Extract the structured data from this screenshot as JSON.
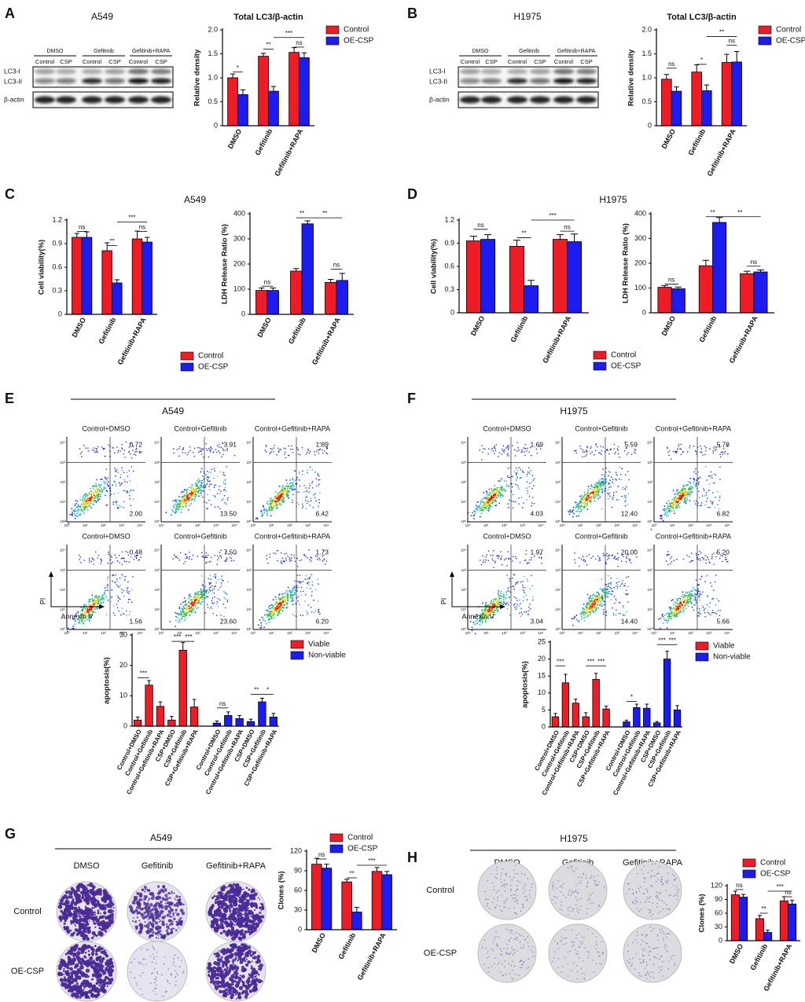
{
  "panel_labels": [
    "A",
    "B",
    "C",
    "D",
    "E",
    "F",
    "G",
    "H"
  ],
  "section_titles": [
    "A549",
    "H1975"
  ],
  "blots": [
    {
      "title": "A549",
      "groups": [
        "DMSO",
        "Gefitinib",
        "Gefitinib+RAPA"
      ],
      "lanes": [
        "Control",
        "CSP",
        "Control",
        "CSP",
        "Control",
        "CSP"
      ],
      "rows": [
        "LC3-I",
        "LC3-II",
        "β-actin"
      ]
    },
    {
      "title": "H1975",
      "groups": [
        "DMSO",
        "Gefitinib",
        "Gefitinib+RAPA"
      ],
      "lanes": [
        "Control",
        "CSP",
        "Control",
        "CSP",
        "Control",
        "CSP"
      ],
      "rows": [
        "LC3-I",
        "LC3-II",
        "β-actin"
      ]
    }
  ],
  "flow_ticks": [
    "10⁰",
    "10¹",
    "10²",
    "10³",
    "10⁴"
  ],
  "flow": [
    {
      "title": "A549",
      "y_axis": "PI",
      "x_axis": "Annexin V",
      "plots": [
        {
          "label": "Control+DMSO",
          "upper": "0.72",
          "lower": "2.00"
        },
        {
          "label": "Control+Gefitinib",
          "upper": "3.91",
          "lower": "13.50"
        },
        {
          "label": "Control+Gefitinib+RAPA",
          "upper": "1.89",
          "lower": "6.42"
        },
        {
          "label": "Control+DMSO",
          "upper": "0.48",
          "lower": "1.56"
        },
        {
          "label": "Control+Gefitinib",
          "upper": "7.50",
          "lower": "23.60"
        },
        {
          "label": "Control+Gefitinib+RAPA",
          "upper": "1.73",
          "lower": "6.20"
        }
      ]
    },
    {
      "title": "H1975",
      "y_axis": "PI",
      "x_axis": "Annexin V",
      "plots": [
        {
          "label": "Control+DMSO",
          "upper": "1.69",
          "lower": "4.03"
        },
        {
          "label": "Control+Gefitinib",
          "upper": "5.59",
          "lower": "12.40"
        },
        {
          "label": "Control+Gefitinib+RAPA",
          "upper": "5.78",
          "lower": "6.82"
        },
        {
          "label": "Control+DMSO",
          "upper": "1.97",
          "lower": "3.04"
        },
        {
          "label": "Control+Gefitinib",
          "upper": "20.00",
          "lower": "14.40"
        },
        {
          "label": "Control+Gefitinib+RAPA",
          "upper": "5.20",
          "lower": "5.66"
        }
      ]
    }
  ],
  "colony": [
    {
      "title": "A549",
      "columns": [
        "DMSO",
        "Gefitinib",
        "Gefitinib+RAPA"
      ],
      "rows": [
        "Control",
        "OE-CSP"
      ]
    },
    {
      "title": "H1975",
      "columns": [
        "DMSO",
        "Gefitinib",
        "Gefitinib+RAPA"
      ],
      "rows": [
        "Control",
        "OE-CSP"
      ]
    }
  ],
  "chart_data": [
    {
      "type": "bar",
      "title": "Total LC3/β-actin",
      "y_label": "Relative density",
      "categories": [
        "DMSO",
        "Gefitinib",
        "Gefitinib+RAPA"
      ],
      "series": [
        {
          "name": "Control",
          "color": "#ee1c24",
          "values": [
            1.0,
            1.45,
            1.53
          ],
          "errors": [
            0.08,
            0.06,
            0.1
          ]
        },
        {
          "name": "OE-CSP",
          "color": "#1c1cf0",
          "values": [
            0.65,
            0.72,
            1.42
          ],
          "errors": [
            0.1,
            0.1,
            0.1
          ]
        }
      ],
      "ylim": [
        0,
        2.0
      ],
      "yticks": [
        0,
        0.5,
        {
          "value": 1.0,
          "label": "1.0"
        },
        1.5,
        {
          "value": 2.0,
          "label": "2.0"
        }
      ],
      "annotations": [
        "*",
        "**",
        "***",
        "ns"
      ]
    },
    {
      "type": "bar",
      "title": "Total LC3/β-actin",
      "y_label": "Relative density",
      "categories": [
        "DMSO",
        "Gefitinib",
        "Gefitinib+RAPA"
      ],
      "series": [
        {
          "name": "Control",
          "color": "#ee1c24",
          "values": [
            0.97,
            1.12,
            1.32
          ],
          "errors": [
            0.1,
            0.15,
            0.17
          ]
        },
        {
          "name": "OE-CSP",
          "color": "#1c1cf0",
          "values": [
            0.72,
            0.73,
            1.33
          ],
          "errors": [
            0.09,
            0.12,
            0.22
          ]
        }
      ],
      "ylim": [
        0,
        2.0
      ],
      "yticks": [
        0,
        0.5,
        {
          "value": 1.0,
          "label": "1.0"
        },
        1.5,
        {
          "value": 2.0,
          "label": "2.0"
        }
      ],
      "annotations": [
        "ns",
        "*",
        "**",
        "ns"
      ]
    },
    {
      "type": "bar",
      "y_label": "Cell viability(%)",
      "categories": [
        "DMSO",
        "Gefitinib",
        "Gefitinib+RAPA"
      ],
      "series": [
        {
          "name": "Control",
          "color": "#ee1c24",
          "values": [
            0.98,
            0.81,
            0.96
          ],
          "errors": [
            0.05,
            0.1,
            0.1
          ]
        },
        {
          "name": "OE-CSP",
          "color": "#1c1cf0",
          "values": [
            0.98,
            0.4,
            0.92
          ],
          "errors": [
            0.07,
            0.04,
            0.06
          ]
        }
      ],
      "ylim": [
        0,
        1.2
      ],
      "yticks": [
        0,
        0.3,
        0.6,
        0.9,
        1.2
      ],
      "annotations": [
        "ns",
        "**",
        "***",
        "ns"
      ]
    },
    {
      "type": "bar",
      "y_label": "LDH Release Ratio (%)",
      "categories": [
        "DMSO",
        "Gefitinib",
        "Gefitinib+RAPA"
      ],
      "series": [
        {
          "color": "#ee1c24",
          "values": [
            95,
            172,
            127
          ],
          "errors": [
            10,
            10,
            12
          ]
        },
        {
          "color": "#1c1cf0",
          "values": [
            95,
            360,
            135
          ],
          "errors": [
            10,
            12,
            28
          ]
        }
      ],
      "ylim": [
        0,
        400
      ],
      "yticks": [
        0,
        100,
        200,
        300,
        400
      ],
      "annotations": [
        "ns",
        "**",
        "**",
        "ns"
      ]
    },
    {
      "type": "bar",
      "y_label": "Cell viability(%)",
      "categories": [
        "DMSO",
        "Gefitinib",
        "Gefitinib+RAPA"
      ],
      "series": [
        {
          "name": "Control",
          "color": "#ee1c24",
          "values": [
            0.93,
            0.86,
            0.95
          ],
          "errors": [
            0.06,
            0.08,
            0.06
          ]
        },
        {
          "name": "OE-CSP",
          "color": "#1c1cf0",
          "values": [
            0.95,
            0.35,
            0.92
          ],
          "errors": [
            0.06,
            0.07,
            0.1
          ]
        }
      ],
      "ylim": [
        0,
        1.2
      ],
      "yticks": [
        0,
        0.3,
        0.6,
        0.9,
        1.2
      ],
      "annotations": [
        "ns",
        "**",
        "***",
        "ns"
      ]
    },
    {
      "type": "bar",
      "y_label": "LDH Release Ratio (%)",
      "categories": [
        "DMSO",
        "Gefitinib",
        "Gefitinib+RAPA"
      ],
      "series": [
        {
          "color": "#ee1c24",
          "values": [
            103,
            190,
            158
          ],
          "errors": [
            7,
            22,
            10
          ]
        },
        {
          "color": "#1c1cf0",
          "values": [
            97,
            365,
            165
          ],
          "errors": [
            7,
            20,
            8
          ]
        }
      ],
      "ylim": [
        0,
        400
      ],
      "yticks": [
        0,
        100,
        200,
        300,
        400
      ],
      "annotations": [
        "ns",
        "**",
        "**",
        "ns"
      ]
    },
    {
      "type": "bar",
      "y_label": "apoptosis(%)",
      "categories": [
        "Control+DMSO",
        "Control+Gefitinib",
        "Control+Gefitinib+RAPA",
        "CSP+DMSO",
        "CSP+Gefitinib",
        "CSP+Gefitinib+RAPA",
        "Control+DMSO",
        "Control+Gefitinib",
        "Control+Gefitinib+RAPA",
        "CSP+DMSO",
        "CSP+Gefitinib",
        "CSP+Gefitinib+RAPA"
      ],
      "series": [
        {
          "name": "Viable",
          "color": "#ee1c24",
          "values": [
            2,
            13.5,
            6.5,
            2,
            25,
            6.3,
            null,
            null,
            null,
            null,
            null,
            null
          ],
          "errors": [
            1,
            1.5,
            1.5,
            1.2,
            2.5,
            2.5,
            null,
            null,
            null,
            null,
            null,
            null
          ]
        },
        {
          "name": "Non-viable",
          "color": "#1c1cf0",
          "values": [
            null,
            null,
            null,
            null,
            null,
            null,
            1,
            3.5,
            2.5,
            1.5,
            8,
            3
          ],
          "errors": [
            null,
            null,
            null,
            null,
            null,
            null,
            0.7,
            1.2,
            1,
            0.8,
            1.2,
            1.2
          ]
        }
      ],
      "ylim": [
        0,
        30
      ],
      "yticks": [
        0,
        10,
        20,
        30
      ],
      "annotations": [
        "***",
        "***",
        "***",
        "ns",
        "**",
        "*"
      ]
    },
    {
      "type": "bar",
      "y_label": "apoptosis(%)",
      "categories": [
        "Control+DMSO",
        "Control+Gefitinib",
        "Control+Gefitinib+RAPA",
        "CSP+DMSO",
        "CSP+Gefitinib",
        "CSP+Gefitinib+RAPA",
        "Control+DMSO",
        "Control+Gefitinib",
        "Control+Gefitinib+RAPA",
        "CSP+DMSO",
        "CSP+Gefitinib",
        "CSP+Gefitinib+RAPA"
      ],
      "series": [
        {
          "name": "Viable",
          "color": "#ee1c24",
          "values": [
            3,
            13,
            7,
            3,
            14,
            5.3,
            null,
            null,
            null,
            null,
            null,
            null
          ],
          "errors": [
            1,
            2.5,
            1.2,
            1.2,
            1.8,
            0.8,
            null,
            null,
            null,
            null,
            null,
            null
          ]
        },
        {
          "name": "Non-viable",
          "color": "#1c1cf0",
          "values": [
            null,
            null,
            null,
            null,
            null,
            null,
            1.5,
            5.7,
            5.5,
            1.2,
            20,
            5
          ],
          "errors": [
            null,
            null,
            null,
            null,
            null,
            null,
            0.5,
            1,
            1.2,
            0.4,
            2.3,
            1.3
          ]
        }
      ],
      "ylim": [
        0,
        25
      ],
      "yticks": [
        0,
        5,
        10,
        15,
        20,
        25
      ],
      "annotations": [
        "***",
        "***",
        "***",
        "*",
        "***",
        "***"
      ]
    },
    {
      "type": "bar",
      "y_label": "Clones (%)",
      "categories": [
        "DMSO",
        "Gefitinib",
        "Gefitinib+RAPA"
      ],
      "series": [
        {
          "name": "Control",
          "color": "#ee1c24",
          "values": [
            100,
            73,
            89
          ],
          "errors": [
            9,
            4,
            6
          ]
        },
        {
          "name": "OE-CSP",
          "color": "#1c1cf0",
          "values": [
            94,
            27,
            84
          ],
          "errors": [
            6,
            7,
            5
          ]
        }
      ],
      "ylim": [
        0,
        120
      ],
      "yticks": [
        0,
        30,
        60,
        90,
        120
      ],
      "annotations": [
        "ns",
        "**",
        "***"
      ]
    },
    {
      "type": "bar",
      "y_label": "Clones (%)",
      "categories": [
        "DMSO",
        "Gefitinib",
        "Gefitinib+RAPA"
      ],
      "series": [
        {
          "name": "Control",
          "color": "#ee1c24",
          "values": [
            100,
            48,
            87
          ],
          "errors": [
            8,
            7,
            9
          ]
        },
        {
          "name": "OE-CSP",
          "color": "#1c1cf0",
          "values": [
            95,
            18,
            80
          ],
          "errors": [
            6,
            5,
            8
          ]
        }
      ],
      "ylim": [
        0,
        120
      ],
      "yticks": [
        0,
        30,
        60,
        90,
        120
      ],
      "annotations": [
        "ns",
        "**",
        "***",
        "ns"
      ]
    }
  ]
}
